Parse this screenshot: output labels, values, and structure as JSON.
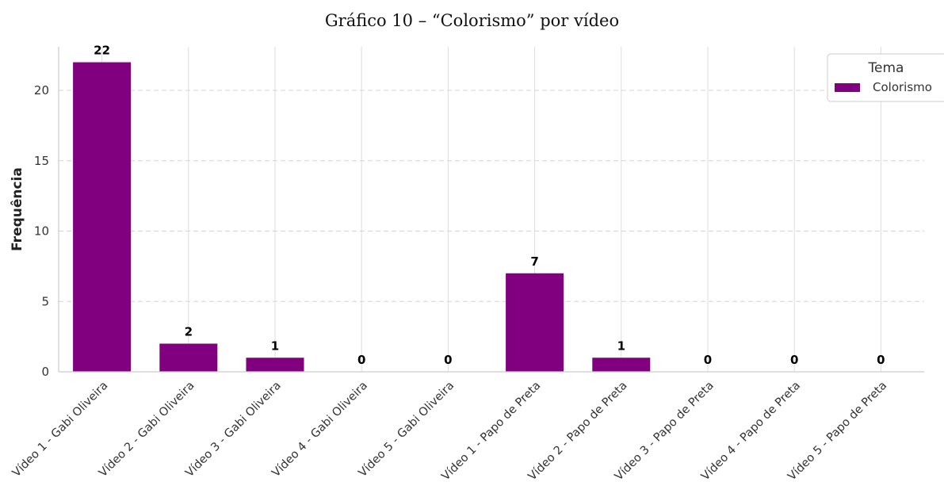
{
  "chart_data": {
    "type": "bar",
    "title": "Gráfico 10 – “Colorismo” por vídeo",
    "xlabel": "",
    "ylabel": "Frequência",
    "categories": [
      "Vídeo 1 - Gabi Oliveira",
      "Vídeo 2 - Gabi Oliveira",
      "Vídeo 3 - Gabi Oliveira",
      "Vídeo 4 - Gabi Oliveira",
      "Vídeo 5 - Gabi Oliveira",
      "Vídeo 1 - Papo de Preta",
      "Vídeo 2 - Papo de Preta",
      "Vídeo 3 - Papo de Preta",
      "Vídeo 4 - Papo de Preta",
      "Vídeo 5 - Papo de Preta"
    ],
    "series": [
      {
        "name": "Colorismo",
        "values": [
          22,
          2,
          1,
          0,
          0,
          7,
          1,
          0,
          0,
          0
        ],
        "color": "#800080"
      }
    ],
    "ylim": [
      0,
      23.1
    ],
    "yticks": [
      0,
      5,
      10,
      15,
      20
    ],
    "grid": true,
    "legend": {
      "title": "Tema",
      "position": "top-right"
    }
  }
}
